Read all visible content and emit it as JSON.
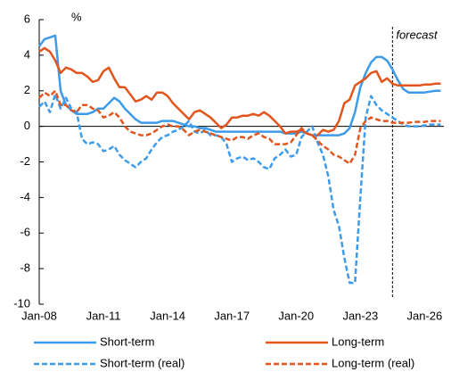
{
  "chart_data": {
    "type": "line",
    "ylabel": "%",
    "annotations": [
      {
        "text": "forecast",
        "x": 2024.5
      }
    ],
    "x": [
      2008,
      2008.25,
      2008.5,
      2008.75,
      2009,
      2009.25,
      2009.5,
      2009.75,
      2010,
      2010.25,
      2010.5,
      2010.75,
      2011,
      2011.25,
      2011.5,
      2011.75,
      2012,
      2012.25,
      2012.5,
      2012.75,
      2013,
      2013.25,
      2013.5,
      2013.75,
      2014,
      2014.25,
      2014.5,
      2014.75,
      2015,
      2015.25,
      2015.5,
      2015.75,
      2016,
      2016.25,
      2016.5,
      2016.75,
      2017,
      2017.25,
      2017.5,
      2017.75,
      2018,
      2018.25,
      2018.5,
      2018.75,
      2019,
      2019.25,
      2019.5,
      2019.75,
      2020,
      2020.25,
      2020.5,
      2020.75,
      2021,
      2021.25,
      2021.5,
      2021.75,
      2022,
      2022.25,
      2022.5,
      2022.75,
      2023,
      2023.25,
      2023.5,
      2023.75,
      2024,
      2024.25,
      2024.5,
      2024.75,
      2025,
      2025.25,
      2025.5,
      2025.75,
      2026,
      2026.25,
      2026.5,
      2026.75
    ],
    "series": [
      {
        "name": "Short-term",
        "color": "#3d9be9",
        "dash": false,
        "values": [
          4.5,
          4.9,
          5.0,
          5.1,
          2.0,
          1.2,
          0.9,
          0.7,
          0.7,
          0.7,
          0.8,
          1.0,
          1.0,
          1.3,
          1.6,
          1.4,
          1.0,
          0.7,
          0.4,
          0.2,
          0.2,
          0.2,
          0.2,
          0.3,
          0.3,
          0.3,
          0.2,
          0.1,
          0.0,
          0.0,
          -0.1,
          -0.1,
          -0.2,
          -0.3,
          -0.3,
          -0.3,
          -0.3,
          -0.3,
          -0.3,
          -0.3,
          -0.3,
          -0.3,
          -0.3,
          -0.3,
          -0.3,
          -0.3,
          -0.4,
          -0.4,
          -0.4,
          -0.3,
          -0.4,
          -0.5,
          -0.5,
          -0.5,
          -0.5,
          -0.5,
          -0.5,
          -0.4,
          -0.1,
          0.8,
          2.2,
          3.0,
          3.6,
          3.9,
          3.9,
          3.7,
          3.2,
          2.6,
          2.1,
          1.9,
          1.9,
          1.9,
          1.9,
          1.95,
          2.0,
          2.0
        ]
      },
      {
        "name": "Long-term",
        "color": "#e2561e",
        "dash": false,
        "values": [
          4.2,
          4.4,
          4.2,
          3.7,
          3.0,
          3.3,
          3.2,
          3.0,
          3.0,
          2.8,
          2.5,
          2.6,
          3.1,
          3.3,
          2.7,
          2.2,
          2.2,
          1.8,
          1.4,
          1.5,
          1.7,
          1.5,
          1.9,
          1.9,
          1.7,
          1.3,
          1.0,
          0.7,
          0.4,
          0.8,
          0.9,
          0.7,
          0.5,
          0.2,
          -0.1,
          0.1,
          0.5,
          0.5,
          0.6,
          0.6,
          0.7,
          0.6,
          0.8,
          0.6,
          0.3,
          0.0,
          -0.4,
          -0.3,
          -0.3,
          -0.2,
          -0.4,
          -0.5,
          -0.5,
          -0.2,
          -0.3,
          -0.2,
          0.3,
          1.3,
          1.5,
          2.3,
          2.5,
          2.7,
          3.0,
          3.1,
          2.5,
          2.7,
          2.4,
          2.3,
          2.3,
          2.3,
          2.3,
          2.3,
          2.35,
          2.35,
          2.4,
          2.4
        ]
      },
      {
        "name": "Short-term (real)",
        "color": "#3d9be9",
        "dash": true,
        "values": [
          1.1,
          1.4,
          0.8,
          1.8,
          1.0,
          1.6,
          1.0,
          0.8,
          -0.7,
          -1.0,
          -0.9,
          -1.0,
          -1.4,
          -1.3,
          -1.1,
          -1.6,
          -1.9,
          -2.1,
          -2.3,
          -2.0,
          -1.8,
          -1.3,
          -0.9,
          -0.6,
          -0.5,
          -0.3,
          -0.2,
          0.0,
          0.3,
          -0.3,
          -0.4,
          -0.2,
          -0.5,
          -0.5,
          -0.6,
          -1.0,
          -2.0,
          -1.8,
          -1.7,
          -1.9,
          -1.8,
          -2.0,
          -2.3,
          -2.4,
          -1.8,
          -1.6,
          -1.3,
          -1.7,
          -1.6,
          -0.6,
          -0.3,
          0.0,
          -0.9,
          -1.6,
          -2.8,
          -4.7,
          -5.6,
          -7.4,
          -8.8,
          -8.8,
          -4.0,
          0.5,
          1.7,
          1.2,
          0.9,
          0.7,
          0.5,
          0.3,
          0.1,
          0.0,
          0.0,
          0.0,
          0.05,
          0.1,
          0.1,
          0.1
        ]
      },
      {
        "name": "Long-term (real)",
        "color": "#e2561e",
        "dash": true,
        "values": [
          1.6,
          1.9,
          1.7,
          2.0,
          1.2,
          1.2,
          0.9,
          0.8,
          1.2,
          1.2,
          1.0,
          0.9,
          0.5,
          0.6,
          0.8,
          0.5,
          0.0,
          -0.3,
          -0.4,
          -0.5,
          -0.5,
          -0.4,
          -0.2,
          0.0,
          0.1,
          0.0,
          0.0,
          -0.2,
          -0.5,
          -0.3,
          -0.2,
          -0.3,
          -0.4,
          -0.5,
          -0.6,
          -0.7,
          -0.8,
          -0.6,
          -0.6,
          -0.7,
          -0.5,
          -0.4,
          -0.6,
          -0.7,
          -1.0,
          -1.0,
          -1.0,
          -0.9,
          -0.5,
          -0.1,
          -0.4,
          -0.5,
          -0.8,
          -1.1,
          -1.3,
          -1.6,
          -1.7,
          -1.9,
          -2.1,
          -1.6,
          -0.1,
          0.3,
          0.5,
          0.4,
          0.3,
          0.3,
          0.2,
          0.2,
          0.2,
          0.2,
          0.25,
          0.25,
          0.25,
          0.3,
          0.3,
          0.3
        ]
      }
    ],
    "xlim": [
      2008,
      2026.9
    ],
    "xticks": [
      {
        "value": 2008,
        "label": "Jan-08"
      },
      {
        "value": 2011,
        "label": "Jan-11"
      },
      {
        "value": 2014,
        "label": "Jan-14"
      },
      {
        "value": 2017,
        "label": "Jan-17"
      },
      {
        "value": 2020,
        "label": "Jan-20"
      },
      {
        "value": 2023,
        "label": "Jan-23"
      },
      {
        "value": 2026,
        "label": "Jan-26"
      }
    ],
    "ylim": [
      -10,
      6
    ],
    "yticks": [
      6,
      4,
      2,
      0,
      -2,
      -4,
      -6,
      -8,
      -10
    ],
    "grid": false,
    "legend": "bottom"
  }
}
